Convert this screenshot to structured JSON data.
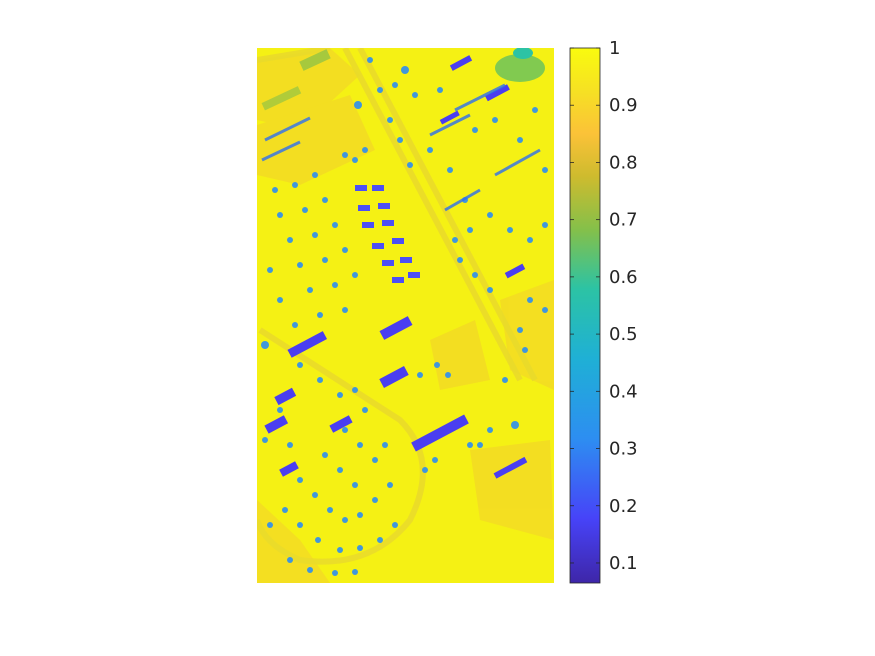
{
  "chart_data": {
    "type": "heatmap",
    "title": "",
    "xlabel": "",
    "ylabel": "",
    "grid": false,
    "colormap": "parula",
    "colorbar": {
      "placement": "right",
      "range": [
        0.065,
        1.0
      ],
      "ticks": [
        {
          "value": 1.0,
          "label": "1"
        },
        {
          "value": 0.9,
          "label": "0.9"
        },
        {
          "value": 0.8,
          "label": "0.8"
        },
        {
          "value": 0.7,
          "label": "0.7"
        },
        {
          "value": 0.6,
          "label": "0.6"
        },
        {
          "value": 0.5,
          "label": "0.5"
        },
        {
          "value": 0.4,
          "label": "0.4"
        },
        {
          "value": 0.3,
          "label": "0.3"
        },
        {
          "value": 0.2,
          "label": "0.2"
        },
        {
          "value": 0.1,
          "label": "0.1"
        }
      ],
      "colors": [
        "#3e26a8",
        "#4743f8",
        "#2d8ef1",
        "#1fb0d5",
        "#2cc3a4",
        "#84c04a",
        "#cebb2e",
        "#fbc238",
        "#f6e123",
        "#f9fb0e"
      ]
    },
    "heatmap": {
      "background_value": 0.98,
      "background_color": "#f5f114",
      "description_of_content": "Top-down urban scene (campus with buildings, roads, trees); most pixels near 1, buildings/tree shadows low (~0.2–0.45)"
    }
  }
}
